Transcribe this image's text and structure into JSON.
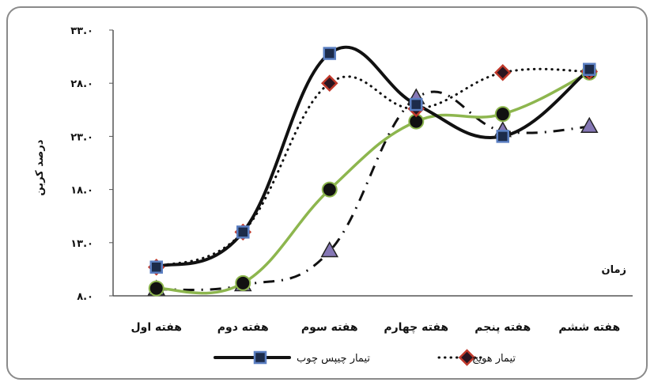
{
  "chart_data": {
    "type": "line",
    "ylabel": "درصد کربن",
    "xlabel": "زمان",
    "ylim": [
      8,
      33
    ],
    "yticks": [
      8,
      13,
      18,
      23,
      28,
      33
    ],
    "ytick_labels": [
      "۸.۰",
      "۱۳.۰",
      "۱۸.۰",
      "۲۳.۰",
      "۲۸.۰",
      "۳۳.۰"
    ],
    "categories": [
      "هفته اول",
      "هفته دوم",
      "هفته سوم",
      "هفته چهارم",
      "هفته پنجم",
      "هفته ششم"
    ],
    "grid": false,
    "legend_position": "bottom",
    "series": [
      {
        "name": "تیمار چیپس چوب",
        "style": "solid",
        "line_color": "#111111",
        "marker": "square",
        "marker_color": "#5b7fc2",
        "in_legend": true,
        "values": [
          10.7,
          14.0,
          30.8,
          26.0,
          23.0,
          29.3
        ]
      },
      {
        "name": "تیمار هویج",
        "style": "dotted",
        "line_color": "#111111",
        "marker": "diamond",
        "marker_color": "#c0392b",
        "in_legend": true,
        "values": [
          10.7,
          14.0,
          28.0,
          25.6,
          29.0,
          29.1
        ]
      },
      {
        "name": "",
        "style": "solid",
        "line_color": "#8db64e",
        "marker": "circle",
        "marker_color": "#111111",
        "in_legend": false,
        "values": [
          8.7,
          9.2,
          18.0,
          24.4,
          25.1,
          29.0
        ]
      },
      {
        "name": "",
        "style": "dashdot",
        "line_color": "#111111",
        "marker": "triangle",
        "marker_color": "#8577b5",
        "in_legend": false,
        "values": [
          8.6,
          9.0,
          12.2,
          26.6,
          23.5,
          23.9
        ]
      }
    ]
  }
}
